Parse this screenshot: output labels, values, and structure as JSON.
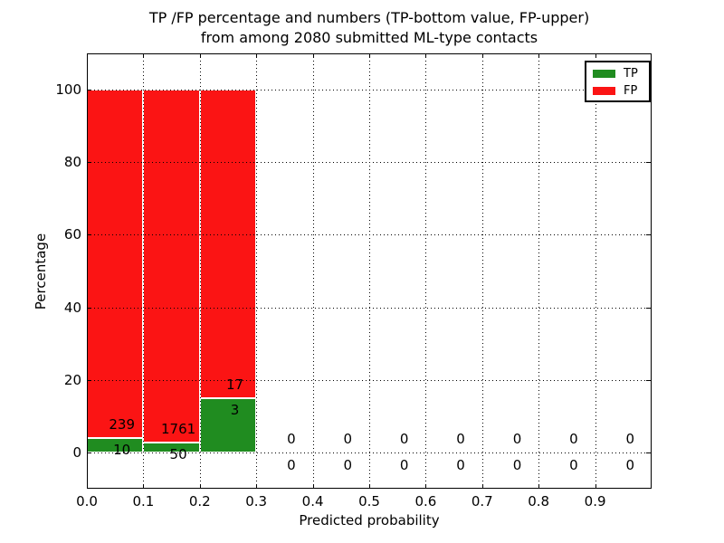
{
  "chart_data": {
    "type": "bar",
    "stacked": true,
    "title": "TP /FP percentage and numbers (TP-bottom value, FP-upper)\nfrom among 2080 submitted ML-type contacts",
    "title_lines": [
      "TP /FP percentage and numbers (TP-bottom value, FP-upper)",
      "from among 2080 submitted ML-type contacts"
    ],
    "xlabel": "Predicted probability",
    "ylabel": "Percentage",
    "xlim": [
      0.0,
      1.0
    ],
    "ylim": [
      -10,
      110
    ],
    "xticks": {
      "values": [
        0.0,
        0.1,
        0.2,
        0.3,
        0.4,
        0.5,
        0.6,
        0.7,
        0.8,
        0.9
      ],
      "labels": [
        "0.0",
        "0.1",
        "0.2",
        "0.3",
        "0.4",
        "0.5",
        "0.6",
        "0.7",
        "0.8",
        "0.9"
      ]
    },
    "yticks": {
      "values": [
        0,
        20,
        40,
        60,
        80,
        100
      ],
      "labels": [
        "0",
        "20",
        "40",
        "60",
        "80",
        "100"
      ]
    },
    "grid": "dotted",
    "legend": {
      "position": "upper right",
      "entries": [
        {
          "label": "TP",
          "color": "#208c20"
        },
        {
          "label": "FP",
          "color": "#fb1414"
        }
      ]
    },
    "bins": [
      {
        "range": "0.0-0.1",
        "x_start": 0.0,
        "tp": 10,
        "fp": 239,
        "tp_pct": 4.02,
        "fp_pct": 95.98
      },
      {
        "range": "0.1-0.2",
        "x_start": 0.1,
        "tp": 50,
        "fp": 1761,
        "tp_pct": 2.76,
        "fp_pct": 97.24
      },
      {
        "range": "0.2-0.3",
        "x_start": 0.2,
        "tp": 3,
        "fp": 17,
        "tp_pct": 15.0,
        "fp_pct": 85.0
      },
      {
        "range": "0.3-0.4",
        "x_start": 0.3,
        "tp": 0,
        "fp": 0,
        "tp_pct": 0,
        "fp_pct": 0
      },
      {
        "range": "0.4-0.5",
        "x_start": 0.4,
        "tp": 0,
        "fp": 0,
        "tp_pct": 0,
        "fp_pct": 0
      },
      {
        "range": "0.5-0.6",
        "x_start": 0.5,
        "tp": 0,
        "fp": 0,
        "tp_pct": 0,
        "fp_pct": 0
      },
      {
        "range": "0.6-0.7",
        "x_start": 0.6,
        "tp": 0,
        "fp": 0,
        "tp_pct": 0,
        "fp_pct": 0
      },
      {
        "range": "0.7-0.8",
        "x_start": 0.7,
        "tp": 0,
        "fp": 0,
        "tp_pct": 0,
        "fp_pct": 0
      },
      {
        "range": "0.8-0.9",
        "x_start": 0.8,
        "tp": 0,
        "fp": 0,
        "tp_pct": 0,
        "fp_pct": 0
      },
      {
        "range": "0.9-1.0",
        "x_start": 0.9,
        "tp": 0,
        "fp": 0,
        "tp_pct": 0,
        "fp_pct": 0
      }
    ]
  },
  "colors": {
    "tp_green": "#208c20",
    "fp_red": "#fb1414",
    "grid": "#000000",
    "background": "#ffffff",
    "text": "#000000"
  }
}
